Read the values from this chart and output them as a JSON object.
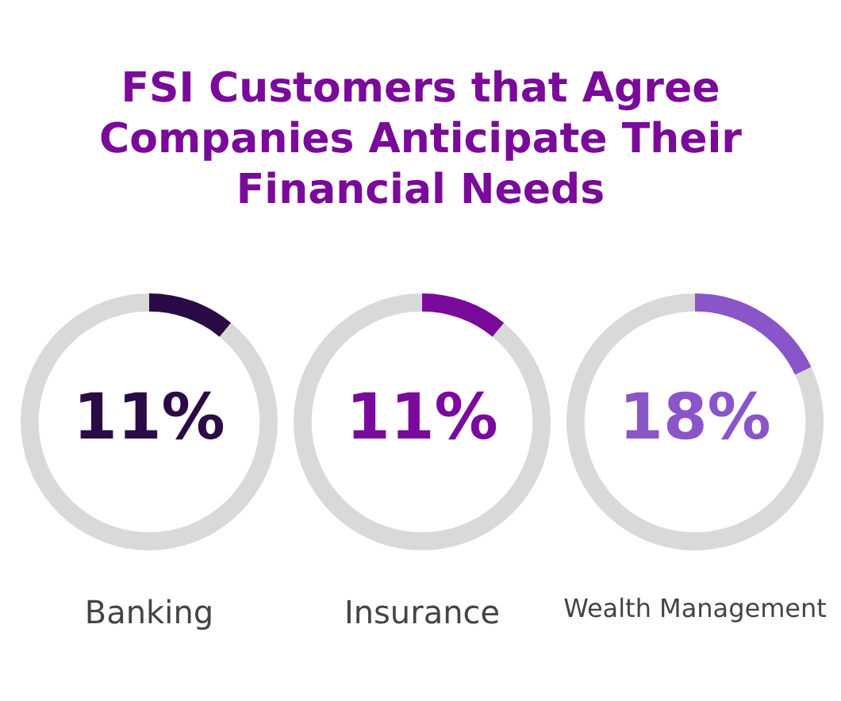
{
  "chart_data": [
    {
      "type": "donut",
      "title": "FSI Customers that Agree Companies Anticipate Their Financial Needs",
      "xlabel": "Banking",
      "categories": [
        null,
        null
      ],
      "values": [
        11,
        89
      ],
      "colors": [
        "#2a0b45",
        "#d9d9d9"
      ],
      "value_labels": [
        "11%",
        null
      ]
    },
    {
      "type": "donut",
      "xlabel": "Insurance",
      "categories": [
        null,
        null
      ],
      "values": [
        11,
        89
      ],
      "colors": [
        "#7a0a9c",
        "#d9d9d9"
      ],
      "value_labels": [
        "11%",
        null
      ]
    },
    {
      "type": "donut",
      "xlabel": "Wealth Management",
      "categories": [
        null,
        null
      ],
      "values": [
        18,
        82
      ],
      "colors": [
        "#8a55c8",
        "#d9d9d9"
      ],
      "value_labels": [
        "18%",
        null
      ]
    }
  ]
}
